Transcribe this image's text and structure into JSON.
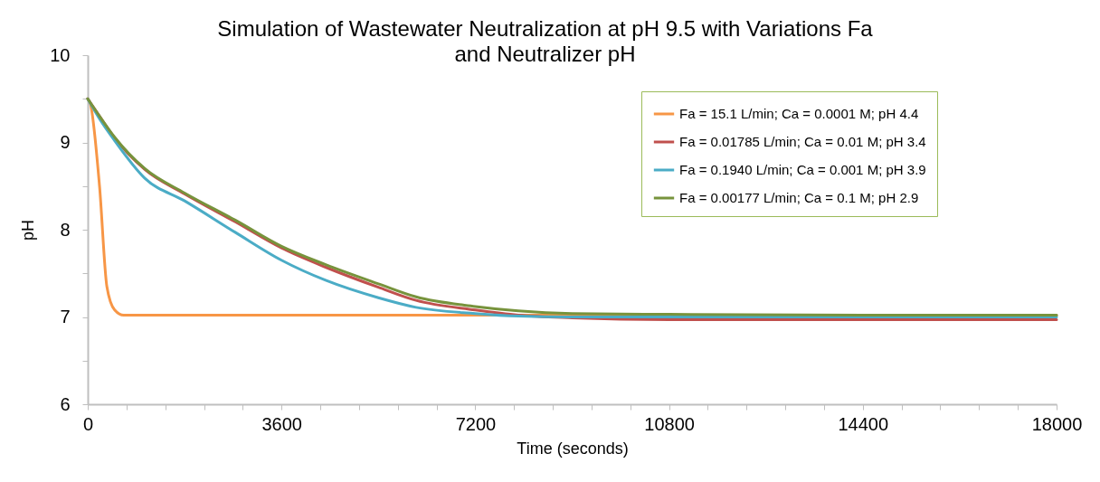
{
  "chart_data": {
    "type": "line",
    "title": "Simulation of Wastewater Neutralization at pH 9.5 with Variations Fa\nand Neutralizer pH",
    "xlabel": "Time (seconds)",
    "ylabel": "pH",
    "xlim": [
      0,
      18000
    ],
    "ylim": [
      6,
      10
    ],
    "xticks": [
      0,
      {
        "value": 720,
        "label": null
      },
      {
        "value": 1440,
        "label": null
      },
      {
        "value": 2160,
        "label": null
      },
      {
        "value": 2880,
        "label": null
      },
      3600,
      {
        "value": 4320,
        "label": null
      },
      {
        "value": 5040,
        "label": null
      },
      {
        "value": 5760,
        "label": null
      },
      {
        "value": 6480,
        "label": null
      },
      7200,
      {
        "value": 7920,
        "label": null
      },
      {
        "value": 8640,
        "label": null
      },
      {
        "value": 9360,
        "label": null
      },
      {
        "value": 10080,
        "label": null
      },
      10800,
      {
        "value": 11520,
        "label": null
      },
      {
        "value": 12240,
        "label": null
      },
      {
        "value": 12960,
        "label": null
      },
      {
        "value": 13680,
        "label": null
      },
      14400,
      {
        "value": 15120,
        "label": null
      },
      {
        "value": 15840,
        "label": null
      },
      {
        "value": 16560,
        "label": null
      },
      {
        "value": 17280,
        "label": null
      },
      18000
    ],
    "yticks": [
      6,
      {
        "value": 6.5,
        "label": null
      },
      7,
      {
        "value": 7.5,
        "label": null
      },
      8,
      {
        "value": 8.5,
        "label": null
      },
      9,
      {
        "value": 9.5,
        "label": null
      },
      10
    ],
    "grid": false,
    "legend": "top right",
    "line_style": "solid",
    "series": [
      {
        "name": "Fa = 15.1 L/min; Ca = 0.0001 M; pH 4.4",
        "color": "#f79646",
        "x": [
          0,
          50,
          220,
          355,
          500,
          670,
          18000
        ],
        "values": [
          9.5,
          9.44,
          8.49,
          7.35,
          7.08,
          7.02,
          7.02
        ]
      },
      {
        "name": "Fa = 0.01785 L/min; Ca = 0.01 M; pH 3.4",
        "color": "#c0504d",
        "x": [
          0,
          220,
          500,
          1060,
          1800,
          2740,
          3600,
          4420,
          5400,
          6100,
          7200,
          8000,
          9000,
          10800,
          14400,
          18000
        ],
        "values": [
          9.5,
          9.3,
          9.05,
          8.69,
          8.41,
          8.09,
          7.79,
          7.57,
          7.34,
          7.19,
          7.08,
          7.02,
          6.99,
          6.97,
          6.97,
          6.97
        ]
      },
      {
        "name": "Fa = 0.1940 L/min; Ca = 0.001 M; pH 3.9",
        "color": "#4bacc6",
        "x": [
          0,
          220,
          500,
          1060,
          1800,
          2740,
          3600,
          4420,
          5400,
          6100,
          7200,
          8000,
          9000,
          10800,
          14400,
          18000
        ],
        "values": [
          9.5,
          9.27,
          9.02,
          8.59,
          8.33,
          7.97,
          7.65,
          7.42,
          7.22,
          7.11,
          7.04,
          7.01,
          7.0,
          7.0,
          7.0,
          7.0
        ]
      },
      {
        "name": "Fa =  0.00177 L/min; Ca = 0.1 M; pH 2.9",
        "color": "#77933c",
        "x": [
          0,
          220,
          500,
          1060,
          1800,
          2740,
          3600,
          4420,
          5400,
          6100,
          7200,
          8000,
          9000,
          10800,
          14400,
          18000
        ],
        "values": [
          9.5,
          9.3,
          9.06,
          8.7,
          8.42,
          8.11,
          7.81,
          7.6,
          7.38,
          7.23,
          7.12,
          7.07,
          7.04,
          7.03,
          7.02,
          7.02
        ]
      }
    ]
  }
}
